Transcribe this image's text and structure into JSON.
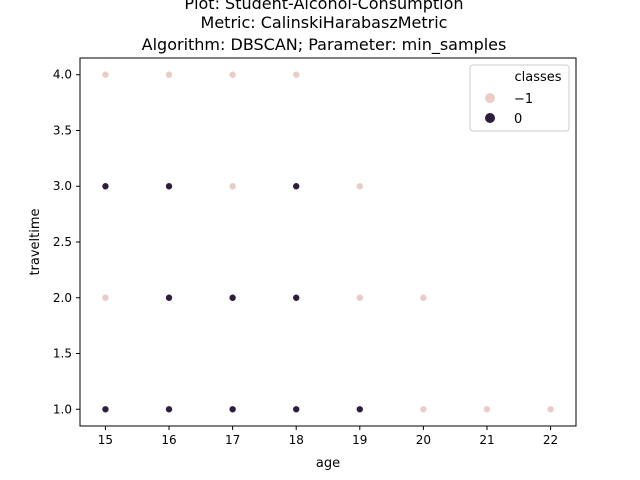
{
  "chart_data": {
    "type": "scatter",
    "title_lines": [
      "Plot: Student-Alcohol-Consumption",
      "Metric: CalinskiHarabaszMetric",
      "Algorithm: DBSCAN; Parameter: min_samples"
    ],
    "xlabel": "age",
    "ylabel": "traveltime",
    "xlim": [
      14.6,
      22.4
    ],
    "ylim": [
      0.85,
      4.15
    ],
    "x_ticks": [
      15,
      16,
      17,
      18,
      19,
      20,
      21,
      22
    ],
    "y_ticks": [
      1.0,
      1.5,
      2.0,
      2.5,
      3.0,
      3.5,
      4.0
    ],
    "x_tick_labels": [
      "15",
      "16",
      "17",
      "18",
      "19",
      "20",
      "21",
      "22"
    ],
    "y_tick_labels": [
      "1.0",
      "1.5",
      "2.0",
      "2.5",
      "3.0",
      "3.5",
      "4.0"
    ],
    "grid": false,
    "legend": {
      "title": "classes",
      "placement": "top-right",
      "entries": [
        {
          "label": "−1",
          "color": "#ebcbc6"
        },
        {
          "label": "0",
          "color": "#2d1e3e"
        }
      ]
    },
    "series": [
      {
        "name": "−1",
        "color": "#ebcbc6",
        "points": [
          [
            15,
            4
          ],
          [
            16,
            4
          ],
          [
            17,
            4
          ],
          [
            18,
            4
          ],
          [
            17,
            3
          ],
          [
            19,
            3
          ],
          [
            15,
            2
          ],
          [
            19,
            2
          ],
          [
            20,
            2
          ],
          [
            20,
            1
          ],
          [
            21,
            1
          ],
          [
            22,
            1
          ]
        ]
      },
      {
        "name": "0",
        "color": "#2d1e3e",
        "points": [
          [
            15,
            3
          ],
          [
            16,
            3
          ],
          [
            18,
            3
          ],
          [
            16,
            2
          ],
          [
            17,
            2
          ],
          [
            18,
            2
          ],
          [
            15,
            1
          ],
          [
            16,
            1
          ],
          [
            17,
            1
          ],
          [
            18,
            1
          ],
          [
            19,
            1
          ]
        ]
      }
    ]
  }
}
